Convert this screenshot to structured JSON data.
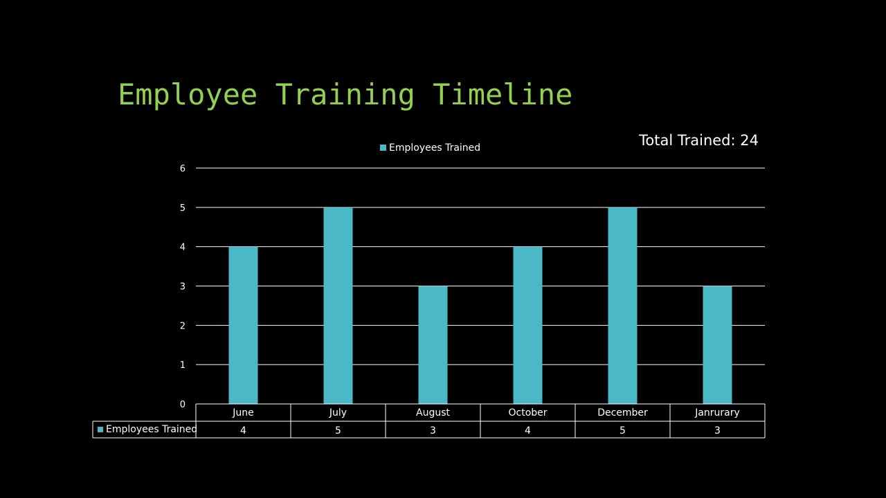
{
  "slide": {
    "title": "Employee Training Timeline",
    "total_label": "Total Trained: 24"
  },
  "colors": {
    "background": "#000000",
    "title": "#92D050",
    "bar": "#4BB8C8",
    "text": "#ffffff",
    "gridline": "#ffffff"
  },
  "chart_data": {
    "type": "bar",
    "categories": [
      "June",
      "July",
      "August",
      "October",
      "December",
      "Janrurary"
    ],
    "series": [
      {
        "name": "Employees Trained",
        "values": [
          4,
          5,
          3,
          4,
          5,
          3
        ]
      }
    ],
    "ylim": [
      0,
      6
    ],
    "yticks": [
      0,
      1,
      2,
      3,
      4,
      5,
      6
    ],
    "grid": true,
    "legend_position": "top",
    "data_table": true
  }
}
